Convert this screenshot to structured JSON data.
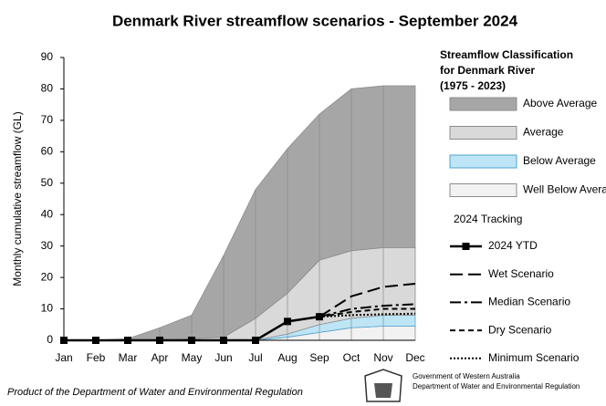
{
  "chart_data": {
    "type": "area",
    "title": "Denmark River streamflow scenarios - September 2024",
    "y_label": "Monthly cumulative streamflow (GL)",
    "legend_title": [
      "Streamflow Classification",
      "for Denmark River",
      "(1975 - 2023)"
    ],
    "legend_subtitle": "2024 Tracking",
    "categories": [
      "Jan",
      "Feb",
      "Mar",
      "Apr",
      "May",
      "Jun",
      "Jul",
      "Aug",
      "Sep",
      "Oct",
      "Nov",
      "Dec"
    ],
    "ylim": [
      0,
      90
    ],
    "yticks": [
      0,
      10,
      20,
      30,
      40,
      50,
      60,
      70,
      80,
      90
    ],
    "stacked": true,
    "series": [
      {
        "name": "Well Below Average",
        "type": "area",
        "color": "#f2f2f2",
        "values": [
          0,
          0,
          0,
          0,
          0,
          0,
          0,
          1,
          2.5,
          4,
          4.5,
          4.5
        ]
      },
      {
        "name": "Below Average",
        "type": "area",
        "color": "#bde5f5",
        "values": [
          0,
          0,
          0,
          0,
          0,
          0,
          0,
          1,
          2.5,
          3,
          3.5,
          3.5
        ]
      },
      {
        "name": "Average",
        "type": "area",
        "color": "#d9d9d9",
        "values": [
          0,
          0,
          0,
          0,
          0.5,
          1,
          7,
          13,
          20.5,
          21.5,
          21.5,
          21.5
        ]
      },
      {
        "name": "Above Average",
        "type": "area",
        "color": "#a6a6a6",
        "values": [
          0,
          0,
          0.5,
          4,
          7.5,
          26,
          41,
          46,
          46.5,
          51.5,
          51.5,
          51.5
        ]
      },
      {
        "name": "2024 YTD",
        "type": "line",
        "color": "#000000",
        "marker": "square",
        "values": [
          0,
          0,
          0,
          0,
          0,
          0,
          0,
          6,
          7.5,
          null,
          null,
          null
        ]
      },
      {
        "name": "Wet Scenario",
        "type": "line",
        "color": "#000000",
        "dash": "14 6",
        "values": [
          null,
          null,
          null,
          null,
          null,
          null,
          null,
          null,
          7.5,
          14,
          17,
          18
        ]
      },
      {
        "name": "Median Scenario",
        "type": "line",
        "color": "#000000",
        "dash": "12 4 3 4",
        "values": [
          null,
          null,
          null,
          null,
          null,
          null,
          null,
          null,
          7.5,
          10,
          11,
          11.5
        ]
      },
      {
        "name": "Dry Scenario",
        "type": "line",
        "color": "#000000",
        "dash": "6 4",
        "values": [
          null,
          null,
          null,
          null,
          null,
          null,
          null,
          null,
          7.5,
          9,
          10,
          10
        ]
      },
      {
        "name": "Minimum Scenario",
        "type": "line",
        "color": "#000000",
        "dash": "2 2",
        "values": [
          null,
          null,
          null,
          null,
          null,
          null,
          null,
          null,
          7.5,
          8,
          8.3,
          8.5
        ]
      }
    ]
  },
  "footer": {
    "credit": "Product of the Department of Water and Environmental Regulation",
    "logo_text": [
      "Government of Western Australia",
      "Department of Water and Environmental Regulation"
    ]
  }
}
